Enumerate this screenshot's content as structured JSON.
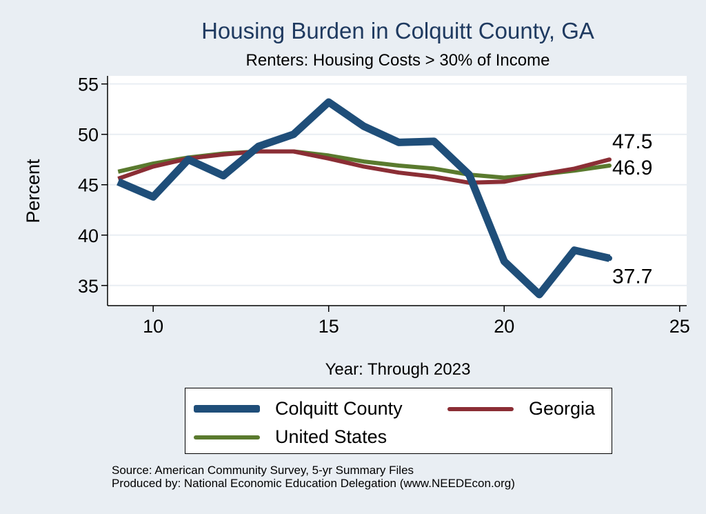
{
  "chart_data": {
    "type": "line",
    "title": "Housing Burden in Colquitt County, GA",
    "subtitle": "Renters: Housing Costs > 30% of Income",
    "xlabel": "Year: Through 2023",
    "ylabel": "Percent",
    "xlim": [
      8.7,
      25.2
    ],
    "ylim": [
      33.0,
      55.8
    ],
    "xticks": [
      10,
      15,
      20,
      25
    ],
    "yticks": [
      35,
      40,
      45,
      50,
      55
    ],
    "grid": true,
    "legend_position": "bottom",
    "series": [
      {
        "name": "Colquitt County",
        "color": "#1f4e79",
        "x": [
          9,
          10,
          11,
          12,
          13,
          14,
          15,
          16,
          17,
          18,
          19,
          20,
          21,
          22,
          23
        ],
        "values": [
          45.3,
          43.8,
          47.5,
          45.9,
          48.8,
          50.0,
          53.2,
          50.8,
          49.2,
          49.3,
          46.0,
          37.4,
          34.1,
          38.5,
          37.7
        ],
        "end_label": "37.7"
      },
      {
        "name": "Georgia",
        "color": "#8b2e35",
        "x": [
          9,
          10,
          11,
          12,
          13,
          14,
          15,
          16,
          17,
          18,
          19,
          20,
          21,
          22,
          23
        ],
        "values": [
          45.6,
          46.8,
          47.6,
          48.0,
          48.3,
          48.3,
          47.6,
          46.8,
          46.2,
          45.8,
          45.2,
          45.3,
          46.0,
          46.6,
          47.5
        ],
        "end_label": "47.5"
      },
      {
        "name": "United States",
        "color": "#5a7a2e",
        "x": [
          9,
          10,
          11,
          12,
          13,
          14,
          15,
          16,
          17,
          18,
          19,
          20,
          21,
          22,
          23
        ],
        "values": [
          46.3,
          47.1,
          47.7,
          48.1,
          48.3,
          48.3,
          47.9,
          47.3,
          46.9,
          46.6,
          46.0,
          45.7,
          46.0,
          46.4,
          46.9
        ],
        "end_label": "46.9"
      }
    ]
  },
  "source": {
    "line1": "Source: American Community Survey, 5-yr Summary Files",
    "line2": "Produced by: National Economic Education Delegation (www.NEEDEcon.org)"
  }
}
